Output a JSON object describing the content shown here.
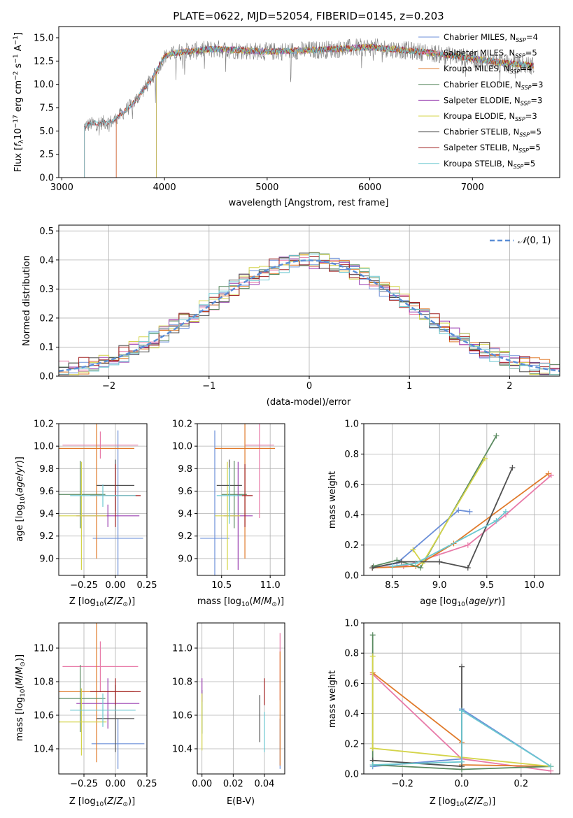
{
  "colors": [
    "#6b8fd8",
    "#e87aa8",
    "#e07a2a",
    "#5a8a60",
    "#9a3fb0",
    "#d4d44a",
    "#505050",
    "#a02020",
    "#6cc8d0"
  ],
  "chart_data": [
    {
      "id": "spectrum",
      "type": "line",
      "title": "PLATE=0622, MJD=52054, FIBERID=0145, z=0.203",
      "xlabel": "wavelength [Angstrom, rest frame]",
      "ylabel": "Flux [f_λ 10^-17 erg cm^-2 s^-1 A^-1]",
      "xlim": [
        2970,
        7850
      ],
      "ylim": [
        0,
        16.2
      ],
      "xticks": [
        3000,
        4000,
        5000,
        6000,
        7000
      ],
      "yticks": [
        0.0,
        2.5,
        5.0,
        7.5,
        10.0,
        12.5,
        15.0
      ],
      "xtick_labels": [
        "3000",
        "4000",
        "5000",
        "6000",
        "7000"
      ],
      "ytick_labels": [
        "0.0",
        "2.5",
        "5.0",
        "7.5",
        "10.0",
        "12.5",
        "15.0"
      ],
      "legend_position": "top-right",
      "continuum": {
        "x": [
          3200,
          3220,
          3300,
          3400,
          3500,
          3600,
          3700,
          3800,
          3900,
          3950,
          4000,
          4100,
          4300,
          4500,
          5000,
          5500,
          6000,
          6500,
          7000,
          7300,
          7600
        ],
        "y": [
          0,
          5.5,
          5.8,
          5.9,
          6.0,
          7.0,
          8.0,
          9.5,
          11.0,
          12.0,
          13.0,
          13.4,
          13.6,
          13.8,
          13.5,
          13.7,
          14.0,
          13.5,
          12.8,
          12.3,
          12.0
        ]
      },
      "series": [
        {
          "name": "Chabrier MILES, N_SSP=4",
          "start": 3530
        },
        {
          "name": "Salpeter MILES, N_SSP=5",
          "start": 3530
        },
        {
          "name": "Kroupa MILES, N_SSP=4",
          "start": 3530
        },
        {
          "name": "Chabrier ELODIE, N_SSP=3",
          "start": 3920
        },
        {
          "name": "Salpeter ELODIE, N_SSP=3",
          "start": 3920
        },
        {
          "name": "Kroupa ELODIE, N_SSP=3",
          "start": 3920
        },
        {
          "name": "Chabrier STELIB, N_SSP=5",
          "start": 3220
        },
        {
          "name": "Salpeter STELIB, N_SSP=5",
          "start": 3220
        },
        {
          "name": "Kroupa STELIB, N_SSP=5",
          "start": 3220
        }
      ]
    },
    {
      "id": "residuals",
      "type": "histogram",
      "xlabel": "(data-model)/error",
      "ylabel": "Normed distribution",
      "xlim": [
        -2.5,
        2.5
      ],
      "ylim": [
        0,
        0.52
      ],
      "xticks": [
        -2,
        -1,
        0,
        1,
        2
      ],
      "yticks": [
        0.0,
        0.1,
        0.2,
        0.3,
        0.4,
        0.5
      ],
      "xtick_labels": [
        "−2",
        "−1",
        "0",
        "1",
        "2"
      ],
      "ytick_labels": [
        "0.0",
        "0.1",
        "0.2",
        "0.3",
        "0.4",
        "0.5"
      ],
      "bin_width": 0.1,
      "grid": true,
      "legend_position": "top-right",
      "reference_curve": {
        "name": "N(0,1)",
        "style": "dashed",
        "color": "#5b8ed6"
      }
    },
    {
      "id": "age_vs_Z",
      "type": "errorbar",
      "xlabel": "Z [log10(Z/Z⊙)]",
      "ylabel": "age  [log10(age/yr)]",
      "xlim": [
        -0.45,
        0.25
      ],
      "ylim": [
        8.85,
        10.2
      ],
      "xticks": [
        -0.25,
        0.0,
        0.25
      ],
      "yticks": [
        9.0,
        9.2,
        9.4,
        9.6,
        9.8,
        10.0,
        10.2
      ],
      "xtick_labels": [
        "−0.25",
        "0.00",
        "0.25"
      ],
      "ytick_labels": [
        "9.0",
        "9.2",
        "9.4",
        "9.6",
        "9.8",
        "10.0",
        "10.2"
      ],
      "grid": true,
      "points": [
        {
          "x": 0.02,
          "y": 9.18,
          "xerr": 0.2,
          "yerr": 0.96,
          "c": 0
        },
        {
          "x": -0.12,
          "y": 10.01,
          "xerr": 0.3,
          "yerr": 0.12,
          "c": 1
        },
        {
          "x": -0.15,
          "y": 9.98,
          "xerr": 0.3,
          "yerr": 0.98,
          "c": 2
        },
        {
          "x": -0.28,
          "y": 9.57,
          "xerr": 0.2,
          "yerr": 0.3,
          "c": 3
        },
        {
          "x": -0.06,
          "y": 9.38,
          "xerr": 0.25,
          "yerr": 0.1,
          "c": 4
        },
        {
          "x": -0.27,
          "y": 9.38,
          "xerr": 0.2,
          "yerr": 0.48,
          "c": 5
        },
        {
          "x": 0.0,
          "y": 9.65,
          "xerr": 0.15,
          "yerr": 0.23,
          "c": 6
        },
        {
          "x": 0.0,
          "y": 9.56,
          "xerr": 0.2,
          "yerr": 0.28,
          "c": 7
        },
        {
          "x": -0.1,
          "y": 9.56,
          "xerr": 0.26,
          "yerr": 0.1,
          "c": 8
        }
      ]
    },
    {
      "id": "age_vs_mass",
      "type": "errorbar",
      "xlabel": "mass [log10(M/M⊙)]",
      "ylabel": "",
      "xlim": [
        10.25,
        11.15
      ],
      "ylim": [
        8.85,
        10.2
      ],
      "xticks": [
        10.5,
        11.0
      ],
      "yticks": [
        9.0,
        9.2,
        9.4,
        9.6,
        9.8,
        10.0,
        10.2
      ],
      "xtick_labels": [
        "10.5",
        "11.0"
      ],
      "ytick_labels": [
        "9.0",
        "9.2",
        "9.4",
        "9.6",
        "9.8",
        "10.0",
        "10.2"
      ],
      "grid": true,
      "points": [
        {
          "x": 10.43,
          "y": 9.18,
          "xerr": 0.15,
          "yerr": 0.96,
          "c": 0
        },
        {
          "x": 10.89,
          "y": 10.01,
          "xerr": 0.15,
          "yerr": 0.65,
          "c": 1
        },
        {
          "x": 10.74,
          "y": 9.98,
          "xerr": 0.31,
          "yerr": 0.98,
          "c": 2
        },
        {
          "x": 10.63,
          "y": 9.57,
          "xerr": 0.13,
          "yerr": 0.3,
          "c": 3
        },
        {
          "x": 10.67,
          "y": 9.38,
          "xerr": 0.15,
          "yerr": 0.48,
          "c": 4
        },
        {
          "x": 10.56,
          "y": 9.38,
          "xerr": 0.13,
          "yerr": 0.48,
          "c": 5
        },
        {
          "x": 10.58,
          "y": 9.65,
          "xerr": 0.13,
          "yerr": 0.23,
          "c": 6
        },
        {
          "x": 10.74,
          "y": 9.56,
          "xerr": 0.08,
          "yerr": 0.28,
          "c": 7
        },
        {
          "x": 10.58,
          "y": 9.56,
          "xerr": 0.13,
          "yerr": 0.25,
          "c": 8
        }
      ]
    },
    {
      "id": "weight_vs_age",
      "type": "line",
      "xlabel": "age  [log10(age/yr)]",
      "ylabel": "mass weight",
      "xlim": [
        8.2,
        10.27
      ],
      "ylim": [
        0,
        1.0
      ],
      "xticks": [
        8.5,
        9.0,
        9.5,
        10.0
      ],
      "yticks": [
        0.0,
        0.2,
        0.4,
        0.6,
        0.8,
        1.0
      ],
      "xtick_labels": [
        "8.5",
        "9.0",
        "9.5",
        "10.0"
      ],
      "ytick_labels": [
        "0.0",
        "0.2",
        "0.4",
        "0.6",
        "0.8",
        "1.0"
      ],
      "grid": true,
      "lines": [
        {
          "c": 0,
          "x": [
            8.29,
            8.55,
            9.2,
            9.32
          ],
          "y": [
            0.05,
            0.08,
            0.43,
            0.42
          ]
        },
        {
          "c": 1,
          "x": [
            8.29,
            8.62,
            9.3,
            9.7,
            10.18
          ],
          "y": [
            0.05,
            0.06,
            0.2,
            0.4,
            0.66
          ]
        },
        {
          "c": 2,
          "x": [
            8.29,
            8.75,
            9.15,
            10.15
          ],
          "y": [
            0.05,
            0.06,
            0.21,
            0.67
          ]
        },
        {
          "c": 3,
          "x": [
            8.3,
            8.55,
            8.8,
            9.6
          ],
          "y": [
            0.06,
            0.1,
            0.05,
            0.92
          ]
        },
        {
          "c": 5,
          "x": [
            8.72,
            8.82,
            9.48
          ],
          "y": [
            0.17,
            0.08,
            0.77
          ]
        },
        {
          "c": 6,
          "x": [
            8.29,
            8.6,
            9.0,
            9.3,
            9.77
          ],
          "y": [
            0.05,
            0.09,
            0.09,
            0.05,
            0.71
          ]
        },
        {
          "c": 8,
          "x": [
            8.5,
            8.75,
            9.6,
            9.7
          ],
          "y": [
            0.06,
            0.08,
            0.36,
            0.42
          ]
        }
      ]
    },
    {
      "id": "mass_vs_Z",
      "type": "errorbar",
      "xlabel": "Z [log10(Z/Z⊙)]",
      "ylabel": "mass [log10(M/M⊙)]",
      "xlim": [
        -0.45,
        0.25
      ],
      "ylim": [
        10.25,
        11.15
      ],
      "xticks": [
        -0.25,
        0.0,
        0.25
      ],
      "yticks": [
        10.4,
        10.6,
        10.8,
        11.0
      ],
      "xtick_labels": [
        "−0.25",
        "0.00",
        "0.25"
      ],
      "ytick_labels": [
        "10.4",
        "10.6",
        "10.8",
        "11.0"
      ],
      "grid": true,
      "points": [
        {
          "x": 0.02,
          "y": 10.43,
          "xerr": 0.21,
          "yerr": 0.15,
          "c": 0
        },
        {
          "x": -0.12,
          "y": 10.89,
          "xerr": 0.3,
          "yerr": 0.15,
          "c": 1
        },
        {
          "x": -0.15,
          "y": 10.74,
          "xerr": 0.3,
          "yerr": 0.42,
          "c": 2
        },
        {
          "x": -0.28,
          "y": 10.7,
          "xerr": 0.2,
          "yerr": 0.2,
          "c": 3
        },
        {
          "x": -0.06,
          "y": 10.67,
          "xerr": 0.25,
          "yerr": 0.15,
          "c": 4
        },
        {
          "x": -0.27,
          "y": 10.56,
          "xerr": 0.2,
          "yerr": 0.2,
          "c": 5
        },
        {
          "x": 0.0,
          "y": 10.58,
          "xerr": 0.15,
          "yerr": 0.2,
          "c": 6
        },
        {
          "x": 0.0,
          "y": 10.74,
          "xerr": 0.2,
          "yerr": 0.08,
          "c": 7
        },
        {
          "x": -0.1,
          "y": 10.63,
          "xerr": 0.26,
          "yerr": 0.1,
          "c": 8
        }
      ]
    },
    {
      "id": "mass_vs_ebv",
      "type": "errorbar",
      "xlabel": "E(B-V)",
      "ylabel": "",
      "xlim": [
        -0.003,
        0.053
      ],
      "ylim": [
        10.25,
        11.15
      ],
      "xticks": [
        0.0,
        0.02,
        0.04
      ],
      "yticks": [
        10.4,
        10.6,
        10.8,
        11.0
      ],
      "xtick_labels": [
        "0.00",
        "0.02",
        "0.04"
      ],
      "ytick_labels": [
        "10.4",
        "10.6",
        "10.8",
        "11.0"
      ],
      "grid": true,
      "points": [
        {
          "x": 0.05,
          "y": 10.43,
          "xerr": 0,
          "yerr": 0.15,
          "c": 0
        },
        {
          "x": 0.05,
          "y": 10.89,
          "xerr": 0,
          "yerr": 0.2,
          "c": 1
        },
        {
          "x": 0.05,
          "y": 10.64,
          "xerr": 0,
          "yerr": 0.34,
          "c": 2
        },
        {
          "x": 0.0,
          "y": 10.62,
          "xerr": 0,
          "yerr": 0.13,
          "c": 3
        },
        {
          "x": 0.0,
          "y": 10.75,
          "xerr": 0,
          "yerr": 0.07,
          "c": 4
        },
        {
          "x": 0.0,
          "y": 10.56,
          "xerr": 0,
          "yerr": 0.17,
          "c": 5
        },
        {
          "x": 0.037,
          "y": 10.58,
          "xerr": 0,
          "yerr": 0.14,
          "c": 6
        },
        {
          "x": 0.04,
          "y": 10.74,
          "xerr": 0,
          "yerr": 0.08,
          "c": 7
        },
        {
          "x": 0.04,
          "y": 10.5,
          "xerr": 0,
          "yerr": 0.12,
          "c": 8
        }
      ]
    },
    {
      "id": "weight_vs_Z",
      "type": "line",
      "xlabel": "Z [log10(Z/Z⊙)]",
      "ylabel": "mass weight",
      "xlim": [
        -0.33,
        0.33
      ],
      "ylim": [
        0,
        1.0
      ],
      "xticks": [
        -0.2,
        0.0,
        0.2
      ],
      "yticks": [
        0.0,
        0.2,
        0.4,
        0.6,
        0.8,
        1.0
      ],
      "xtick_labels": [
        "−0.2",
        "0.0",
        "0.2"
      ],
      "ytick_labels": [
        "0.0",
        "0.2",
        "0.4",
        "0.6",
        "0.8",
        "1.0"
      ],
      "grid": true,
      "lines": [
        {
          "c": 0,
          "x": [
            -0.3,
            0.0,
            0.0,
            0.3
          ],
          "y": [
            0.05,
            0.1,
            0.43,
            0.05
          ]
        },
        {
          "c": 1,
          "x": [
            -0.3,
            0.0,
            0.3
          ],
          "y": [
            0.66,
            0.1,
            0.02
          ]
        },
        {
          "c": 2,
          "x": [
            -0.3,
            0.0,
            0.0,
            0.3
          ],
          "y": [
            0.67,
            0.21,
            0.06,
            0.05
          ]
        },
        {
          "c": 3,
          "x": [
            -0.3,
            -0.3,
            0.0,
            0.3
          ],
          "y": [
            0.92,
            0.06,
            0.03,
            0.05
          ]
        },
        {
          "c": 5,
          "x": [
            -0.3,
            -0.3,
            0.3
          ],
          "y": [
            0.78,
            0.17,
            0.05
          ]
        },
        {
          "c": 6,
          "x": [
            -0.3,
            0.0,
            0.0
          ],
          "y": [
            0.09,
            0.05,
            0.71
          ]
        },
        {
          "c": 8,
          "x": [
            -0.3,
            0.0,
            0.0,
            0.3
          ],
          "y": [
            0.06,
            0.08,
            0.42,
            0.05
          ]
        }
      ]
    }
  ]
}
